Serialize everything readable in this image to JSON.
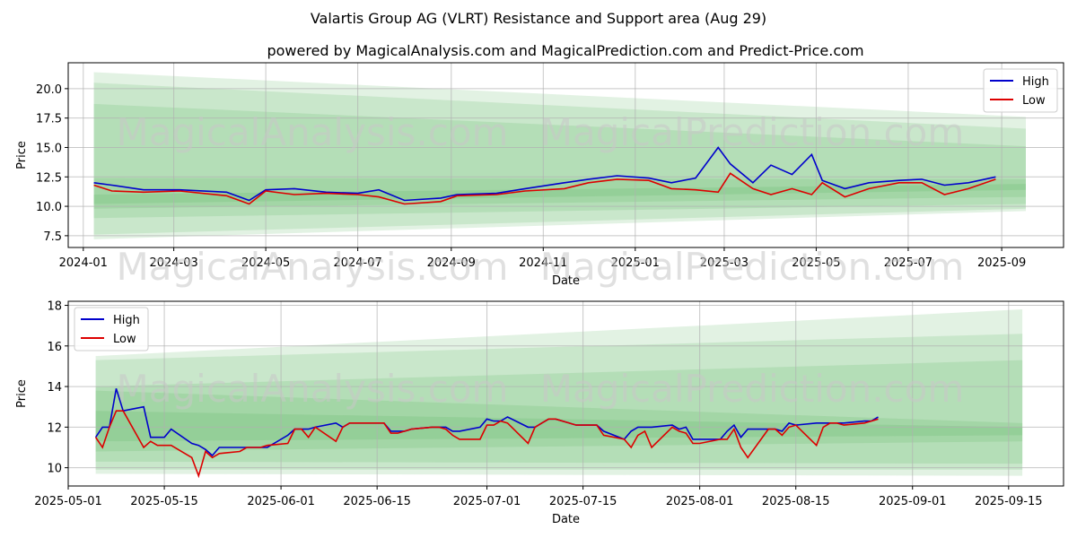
{
  "title": "Valartis Group AG (VLRT) Resistance and Support area (Aug 29)",
  "subtitle": "powered by MagicalAnalysis.com and MagicalPrediction.com and Predict-Price.com",
  "watermark_left": "MagicalAnalysis.com",
  "watermark_right": "MagicalPrediction.com",
  "colors": {
    "high": "#0000cc",
    "low": "#dd0000",
    "band": "#4caf50",
    "grid": "#b0b0b0"
  },
  "chart_data": [
    {
      "type": "line",
      "xlabel": "Date",
      "ylabel": "Price",
      "legend_position": "top-right",
      "grid": true,
      "xlim": [
        "2023-12-22",
        "2025-10-12"
      ],
      "ylim": [
        6.5,
        22.2
      ],
      "xticks": [
        "2024-01",
        "2024-03",
        "2024-05",
        "2024-07",
        "2024-09",
        "2024-11",
        "2025-01",
        "2025-03",
        "2025-05",
        "2025-07",
        "2025-09"
      ],
      "yticks": [
        7.5,
        10.0,
        12.5,
        15.0,
        17.5,
        20.0
      ],
      "series": [
        {
          "name": "High",
          "x": [
            "2024-01-08",
            "2024-01-20",
            "2024-02-10",
            "2024-03-05",
            "2024-04-05",
            "2024-04-20",
            "2024-05-01",
            "2024-05-20",
            "2024-06-10",
            "2024-07-01",
            "2024-07-15",
            "2024-08-01",
            "2024-08-25",
            "2024-09-05",
            "2024-10-01",
            "2024-10-20",
            "2024-11-15",
            "2024-12-01",
            "2024-12-20",
            "2025-01-10",
            "2025-01-25",
            "2025-02-10",
            "2025-02-25",
            "2025-03-05",
            "2025-03-20",
            "2025-04-01",
            "2025-04-15",
            "2025-04-28",
            "2025-05-05",
            "2025-05-20",
            "2025-06-05",
            "2025-06-25",
            "2025-07-10",
            "2025-07-25",
            "2025-08-10",
            "2025-08-28"
          ],
          "y": [
            12.0,
            11.8,
            11.4,
            11.4,
            11.2,
            10.5,
            11.4,
            11.5,
            11.2,
            11.1,
            11.4,
            10.5,
            10.7,
            11.0,
            11.1,
            11.5,
            12.0,
            12.3,
            12.6,
            12.4,
            12.0,
            12.4,
            15.0,
            13.6,
            12.0,
            13.5,
            12.7,
            14.4,
            12.2,
            11.5,
            12.0,
            12.2,
            12.3,
            11.8,
            12.0,
            12.5
          ]
        },
        {
          "name": "Low",
          "x": [
            "2024-01-08",
            "2024-01-20",
            "2024-02-10",
            "2024-03-05",
            "2024-04-05",
            "2024-04-20",
            "2024-05-01",
            "2024-05-20",
            "2024-06-10",
            "2024-07-01",
            "2024-07-15",
            "2024-08-01",
            "2024-08-25",
            "2024-09-05",
            "2024-10-01",
            "2024-10-20",
            "2024-11-15",
            "2024-12-01",
            "2024-12-20",
            "2025-01-10",
            "2025-01-25",
            "2025-02-10",
            "2025-02-25",
            "2025-03-05",
            "2025-03-20",
            "2025-04-01",
            "2025-04-15",
            "2025-04-28",
            "2025-05-05",
            "2025-05-20",
            "2025-06-05",
            "2025-06-25",
            "2025-07-10",
            "2025-07-25",
            "2025-08-10",
            "2025-08-28"
          ],
          "y": [
            11.8,
            11.3,
            11.2,
            11.3,
            10.9,
            10.2,
            11.3,
            11.0,
            11.1,
            11.0,
            10.8,
            10.2,
            10.4,
            10.9,
            11.0,
            11.3,
            11.5,
            12.0,
            12.3,
            12.2,
            11.5,
            11.4,
            11.2,
            12.8,
            11.5,
            11.0,
            11.5,
            11.0,
            12.0,
            10.8,
            11.5,
            12.0,
            12.0,
            11.0,
            11.5,
            12.3
          ]
        }
      ],
      "bands": [
        {
          "start": "2024-01-08",
          "end": "2025-09-17",
          "upper": [
            21.4,
            17.6
          ],
          "lower": [
            7.2,
            9.6
          ]
        },
        {
          "start": "2024-01-08",
          "end": "2025-09-17",
          "upper": [
            20.5,
            16.6
          ],
          "lower": [
            7.6,
            9.8
          ]
        },
        {
          "start": "2024-01-08",
          "end": "2025-09-17",
          "upper": [
            18.7,
            15.1
          ],
          "lower": [
            9.0,
            10.2
          ]
        },
        {
          "start": "2024-01-08",
          "end": "2025-09-17",
          "upper": [
            12.4,
            12.3
          ],
          "lower": [
            9.8,
            10.8
          ]
        },
        {
          "start": "2024-01-08",
          "end": "2025-09-17",
          "upper": [
            11.0,
            11.9
          ],
          "lower": [
            10.2,
            11.4
          ]
        }
      ]
    },
    {
      "type": "line",
      "xlabel": "Date",
      "ylabel": "Price",
      "legend_position": "top-left",
      "grid": true,
      "xlim": [
        "2025-05-01",
        "2025-09-23"
      ],
      "ylim": [
        9.1,
        18.2
      ],
      "xticks": [
        "2025-05-01",
        "2025-05-15",
        "2025-06-01",
        "2025-06-15",
        "2025-07-01",
        "2025-07-15",
        "2025-08-01",
        "2025-08-15",
        "2025-09-01",
        "2025-09-15"
      ],
      "yticks": [
        10,
        12,
        14,
        16,
        18
      ],
      "series": [
        {
          "name": "High",
          "x": [
            "2025-05-05",
            "2025-05-06",
            "2025-05-07",
            "2025-05-08",
            "2025-05-09",
            "2025-05-12",
            "2025-05-13",
            "2025-05-14",
            "2025-05-15",
            "2025-05-16",
            "2025-05-19",
            "2025-05-20",
            "2025-05-21",
            "2025-05-22",
            "2025-05-23",
            "2025-05-26",
            "2025-05-27",
            "2025-05-28",
            "2025-05-29",
            "2025-05-30",
            "2025-06-02",
            "2025-06-03",
            "2025-06-04",
            "2025-06-05",
            "2025-06-06",
            "2025-06-09",
            "2025-06-10",
            "2025-06-11",
            "2025-06-12",
            "2025-06-13",
            "2025-06-16",
            "2025-06-17",
            "2025-06-18",
            "2025-06-19",
            "2025-06-20",
            "2025-06-23",
            "2025-06-24",
            "2025-06-25",
            "2025-06-26",
            "2025-06-27",
            "2025-06-30",
            "2025-07-01",
            "2025-07-02",
            "2025-07-03",
            "2025-07-04",
            "2025-07-07",
            "2025-07-08",
            "2025-07-09",
            "2025-07-10",
            "2025-07-11",
            "2025-07-14",
            "2025-07-15",
            "2025-07-16",
            "2025-07-17",
            "2025-07-18",
            "2025-07-21",
            "2025-07-22",
            "2025-07-23",
            "2025-07-24",
            "2025-07-25",
            "2025-07-28",
            "2025-07-29",
            "2025-07-30",
            "2025-07-31",
            "2025-08-01",
            "2025-08-04",
            "2025-08-05",
            "2025-08-06",
            "2025-08-07",
            "2025-08-08",
            "2025-08-11",
            "2025-08-12",
            "2025-08-13",
            "2025-08-14",
            "2025-08-15",
            "2025-08-18",
            "2025-08-19",
            "2025-08-20",
            "2025-08-21",
            "2025-08-22",
            "2025-08-25",
            "2025-08-26",
            "2025-08-27"
          ],
          "y": [
            11.5,
            12.0,
            12.0,
            13.9,
            12.8,
            13.0,
            11.5,
            11.5,
            11.5,
            11.9,
            11.2,
            11.1,
            10.9,
            10.6,
            11.0,
            11.0,
            11.0,
            11.0,
            11.0,
            11.0,
            11.6,
            11.9,
            11.9,
            11.9,
            12.0,
            12.2,
            12.0,
            12.2,
            12.2,
            12.2,
            12.2,
            11.8,
            11.8,
            11.8,
            11.9,
            12.0,
            12.0,
            12.0,
            11.8,
            11.8,
            12.0,
            12.4,
            12.3,
            12.3,
            12.5,
            12.0,
            12.0,
            12.2,
            12.4,
            12.4,
            12.1,
            12.1,
            12.1,
            12.1,
            11.8,
            11.4,
            11.8,
            12.0,
            12.0,
            12.0,
            12.1,
            11.9,
            12.0,
            11.4,
            11.4,
            11.4,
            11.8,
            12.1,
            11.5,
            11.9,
            11.9,
            11.9,
            11.8,
            12.2,
            12.1,
            12.2,
            12.2,
            12.2,
            12.2,
            12.2,
            12.3,
            12.3,
            12.5
          ]
        },
        {
          "name": "Low",
          "x": [
            "2025-05-05",
            "2025-05-06",
            "2025-05-07",
            "2025-05-08",
            "2025-05-09",
            "2025-05-12",
            "2025-05-13",
            "2025-05-14",
            "2025-05-15",
            "2025-05-16",
            "2025-05-19",
            "2025-05-20",
            "2025-05-21",
            "2025-05-22",
            "2025-05-23",
            "2025-05-26",
            "2025-05-27",
            "2025-05-28",
            "2025-05-29",
            "2025-05-30",
            "2025-06-02",
            "2025-06-03",
            "2025-06-04",
            "2025-06-05",
            "2025-06-06",
            "2025-06-09",
            "2025-06-10",
            "2025-06-11",
            "2025-06-12",
            "2025-06-13",
            "2025-06-16",
            "2025-06-17",
            "2025-06-18",
            "2025-06-19",
            "2025-06-20",
            "2025-06-23",
            "2025-06-24",
            "2025-06-25",
            "2025-06-26",
            "2025-06-27",
            "2025-06-30",
            "2025-07-01",
            "2025-07-02",
            "2025-07-03",
            "2025-07-04",
            "2025-07-07",
            "2025-07-08",
            "2025-07-09",
            "2025-07-10",
            "2025-07-11",
            "2025-07-14",
            "2025-07-15",
            "2025-07-16",
            "2025-07-17",
            "2025-07-18",
            "2025-07-21",
            "2025-07-22",
            "2025-07-23",
            "2025-07-24",
            "2025-07-25",
            "2025-07-28",
            "2025-07-29",
            "2025-07-30",
            "2025-07-31",
            "2025-08-01",
            "2025-08-04",
            "2025-08-05",
            "2025-08-06",
            "2025-08-07",
            "2025-08-08",
            "2025-08-11",
            "2025-08-12",
            "2025-08-13",
            "2025-08-14",
            "2025-08-15",
            "2025-08-18",
            "2025-08-19",
            "2025-08-20",
            "2025-08-21",
            "2025-08-22",
            "2025-08-25",
            "2025-08-26",
            "2025-08-27"
          ],
          "y": [
            11.5,
            11.0,
            12.0,
            12.8,
            12.8,
            11.0,
            11.3,
            11.1,
            11.1,
            11.1,
            10.5,
            9.6,
            10.8,
            10.5,
            10.7,
            10.8,
            11.0,
            11.0,
            11.0,
            11.1,
            11.2,
            11.9,
            11.9,
            11.5,
            12.0,
            11.3,
            12.0,
            12.2,
            12.2,
            12.2,
            12.2,
            11.7,
            11.7,
            11.8,
            11.9,
            12.0,
            12.0,
            11.9,
            11.6,
            11.4,
            11.4,
            12.1,
            12.1,
            12.3,
            12.2,
            11.2,
            12.0,
            12.2,
            12.4,
            12.4,
            12.1,
            12.1,
            12.1,
            12.1,
            11.6,
            11.4,
            11.0,
            11.6,
            11.8,
            11.0,
            12.0,
            11.8,
            11.7,
            11.2,
            11.2,
            11.4,
            11.4,
            11.9,
            11.0,
            10.5,
            11.9,
            11.9,
            11.6,
            12.0,
            12.1,
            11.1,
            12.0,
            12.2,
            12.2,
            12.1,
            12.2,
            12.3,
            12.4
          ]
        }
      ],
      "bands": [
        {
          "start": "2025-05-05",
          "end": "2025-09-17",
          "upper": [
            15.5,
            17.8
          ],
          "lower": [
            9.7,
            9.6
          ]
        },
        {
          "start": "2025-05-05",
          "end": "2025-09-17",
          "upper": [
            15.3,
            16.6
          ],
          "lower": [
            9.9,
            9.9
          ]
        },
        {
          "start": "2025-05-05",
          "end": "2025-09-17",
          "upper": [
            14.0,
            15.3
          ],
          "lower": [
            10.3,
            10.2
          ]
        },
        {
          "start": "2025-05-05",
          "end": "2025-09-17",
          "upper": [
            13.8,
            12.2
          ],
          "lower": [
            10.8,
            11.3
          ]
        },
        {
          "start": "2025-05-05",
          "end": "2025-09-17",
          "upper": [
            12.8,
            12.0
          ],
          "lower": [
            11.3,
            11.6
          ]
        }
      ]
    }
  ]
}
